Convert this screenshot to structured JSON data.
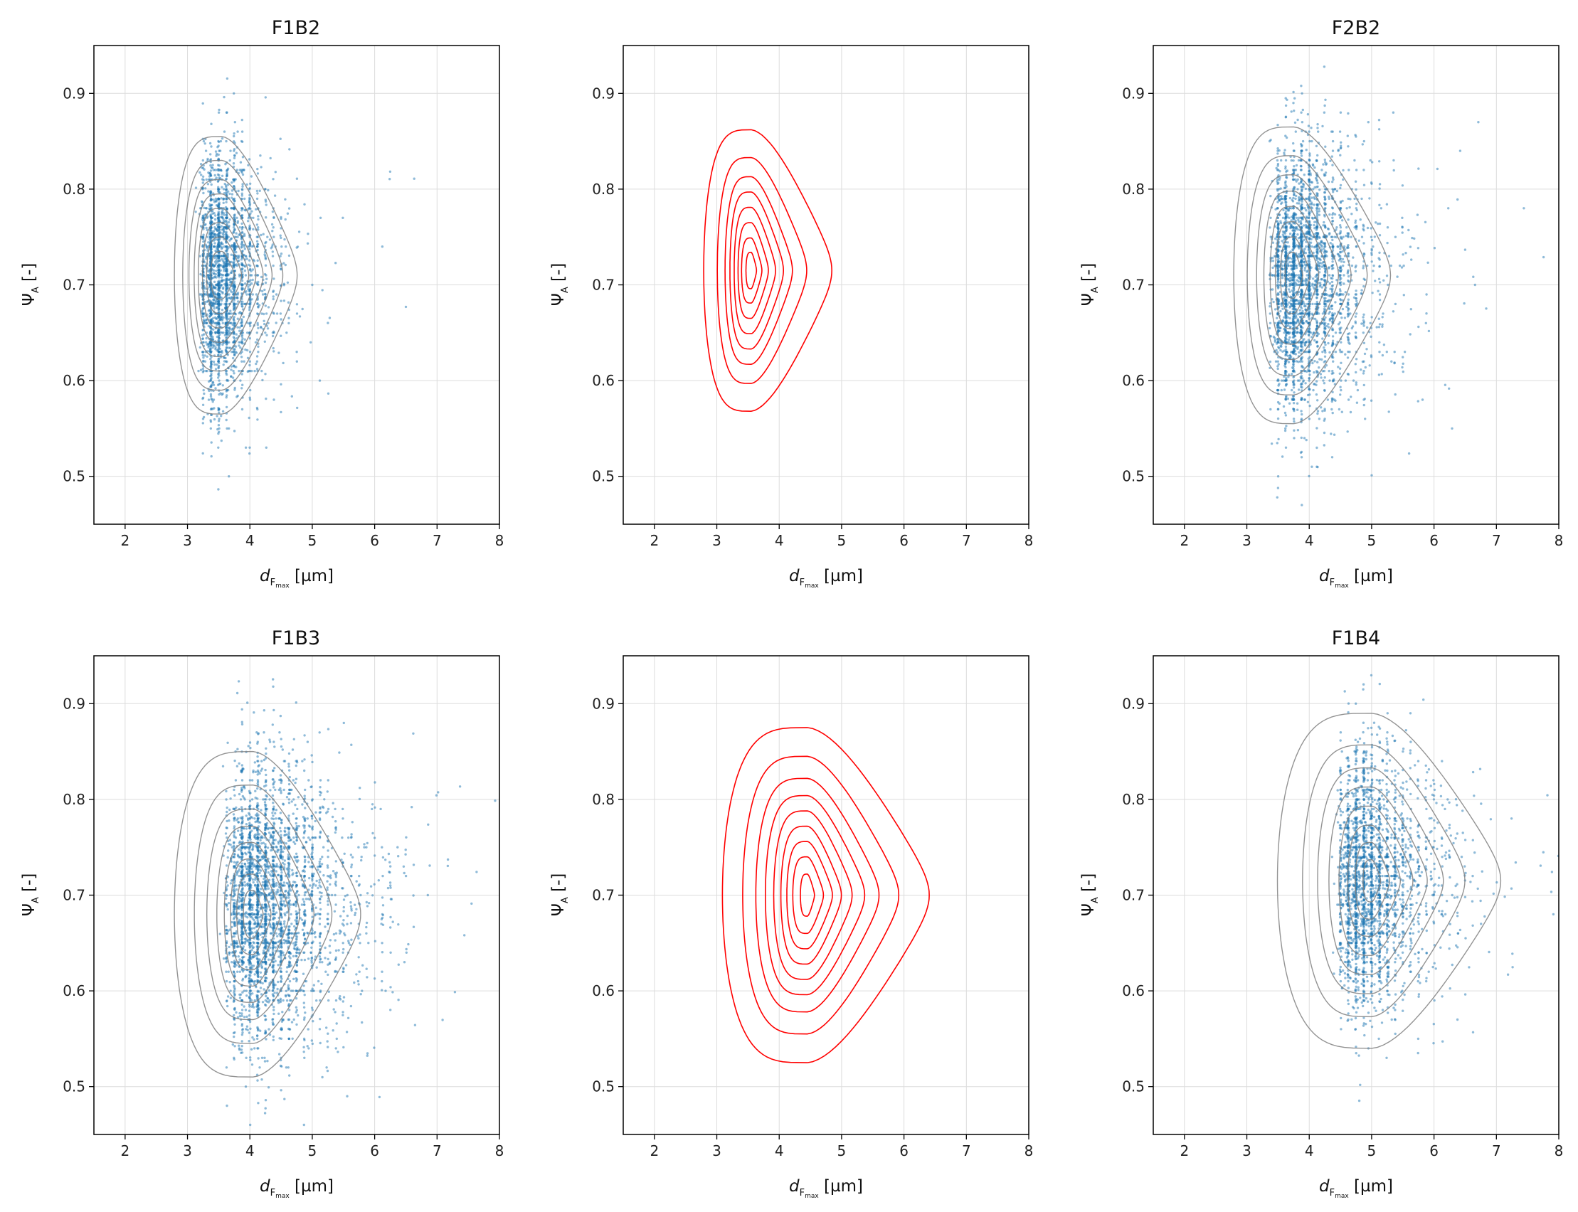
{
  "chart_data": [
    {
      "type": "scatter",
      "title": "F1B2",
      "xlabel": "d",
      "xlabel_sub": "F",
      "xlabel_subsub": "max",
      "xlabel_unit": " [µm]",
      "ylabel": "Ψ",
      "ylabel_sub": "A",
      "ylabel_unit": " [-]",
      "xlim": [
        1.5,
        8
      ],
      "ylim": [
        0.45,
        0.95
      ],
      "xticks": [
        "2",
        "3",
        "4",
        "5",
        "6",
        "7",
        "8"
      ],
      "yticks": [
        "0.5",
        "0.6",
        "0.7",
        "0.8",
        "0.9"
      ],
      "grid": true,
      "scatter": {
        "color": "#1f77b4",
        "n_points": 2600,
        "mode": 3.55,
        "min_x": 2.75,
        "x_scale": 0.55,
        "y_center": 0.71,
        "y_sd": 0.062
      },
      "contours": {
        "color": "#808080",
        "center": [
          3.55,
          0.71
        ],
        "left": 2.85,
        "rx": [
          2.1,
          1.7,
          1.4,
          1.15,
          0.95,
          0.75,
          0.55,
          0.35
        ],
        "ry": [
          0.145,
          0.12,
          0.1,
          0.085,
          0.07,
          0.055,
          0.04,
          0.025
        ]
      }
    },
    {
      "type": "contour",
      "title": "",
      "xlabel": "d",
      "xlabel_sub": "F",
      "xlabel_subsub": "max",
      "xlabel_unit": " [µm]",
      "ylabel": "Ψ",
      "ylabel_sub": "A",
      "ylabel_unit": " [-]",
      "xlim": [
        1.5,
        8
      ],
      "ylim": [
        0.45,
        0.95
      ],
      "xticks": [
        "2",
        "3",
        "4",
        "5",
        "6",
        "7",
        "8"
      ],
      "yticks": [
        "0.5",
        "0.6",
        "0.7",
        "0.8",
        "0.9"
      ],
      "grid": true,
      "contours": {
        "color": "#ff0000",
        "center": [
          3.55,
          0.715
        ],
        "left": 2.85,
        "rx": [
          2.25,
          1.55,
          1.15,
          0.9,
          0.68,
          0.48,
          0.3,
          0.15
        ],
        "ry": [
          0.147,
          0.118,
          0.098,
          0.082,
          0.066,
          0.05,
          0.034,
          0.019
        ]
      }
    },
    {
      "type": "scatter",
      "title": "F2B2",
      "xlabel": "d",
      "xlabel_sub": "F",
      "xlabel_subsub": "max",
      "xlabel_unit": " [µm]",
      "ylabel": "Ψ",
      "ylabel_sub": "A",
      "ylabel_unit": " [-]",
      "xlim": [
        1.5,
        8
      ],
      "ylim": [
        0.45,
        0.95
      ],
      "xticks": [
        "2",
        "3",
        "4",
        "5",
        "6",
        "7",
        "8"
      ],
      "yticks": [
        "0.5",
        "0.6",
        "0.7",
        "0.8",
        "0.9"
      ],
      "grid": true,
      "scatter": {
        "color": "#1f77b4",
        "n_points": 3200,
        "mode": 3.8,
        "min_x": 2.75,
        "x_scale": 0.75,
        "y_center": 0.705,
        "y_sd": 0.068
      },
      "contours": {
        "color": "#808080",
        "center": [
          3.75,
          0.71
        ],
        "left": 2.85,
        "rx": [
          2.7,
          2.05,
          1.6,
          1.25,
          0.95,
          0.7,
          0.45,
          0.25
        ],
        "ry": [
          0.155,
          0.125,
          0.105,
          0.088,
          0.072,
          0.056,
          0.04,
          0.024
        ]
      }
    },
    {
      "type": "scatter",
      "title": "F1B3",
      "xlabel": "d",
      "xlabel_sub": "F",
      "xlabel_subsub": "max",
      "xlabel_unit": " [µm]",
      "ylabel": "Ψ",
      "ylabel_sub": "A",
      "ylabel_unit": " [-]",
      "xlim": [
        1.5,
        8
      ],
      "ylim": [
        0.45,
        0.95
      ],
      "xticks": [
        "2",
        "3",
        "4",
        "5",
        "6",
        "7",
        "8"
      ],
      "yticks": [
        "0.5",
        "0.6",
        "0.7",
        "0.8",
        "0.9"
      ],
      "grid": true,
      "scatter": {
        "color": "#1f77b4",
        "n_points": 3400,
        "mode": 4.1,
        "min_x": 2.75,
        "x_scale": 0.95,
        "y_center": 0.69,
        "y_sd": 0.07
      },
      "contours": {
        "color": "#808080",
        "center": [
          4.05,
          0.68
        ],
        "left": 2.85,
        "rx": [
          3.0,
          2.2,
          1.7,
          1.3,
          1.0,
          0.75,
          0.5,
          0.28
        ],
        "ry": [
          0.17,
          0.135,
          0.11,
          0.092,
          0.075,
          0.058,
          0.042,
          0.025
        ]
      }
    },
    {
      "type": "contour",
      "title": "",
      "xlabel": "d",
      "xlabel_sub": "F",
      "xlabel_subsub": "max",
      "xlabel_unit": " [µm]",
      "ylabel": "Ψ",
      "ylabel_sub": "A",
      "ylabel_unit": " [-]",
      "xlim": [
        1.5,
        8
      ],
      "ylim": [
        0.45,
        0.95
      ],
      "xticks": [
        "2",
        "3",
        "4",
        "5",
        "6",
        "7",
        "8"
      ],
      "yticks": [
        "0.5",
        "0.6",
        "0.7",
        "0.8",
        "0.9"
      ],
      "grid": true,
      "contours": {
        "color": "#ff0000",
        "center": [
          4.45,
          0.7
        ],
        "left": 3.15,
        "rx": [
          3.4,
          2.55,
          2.0,
          1.6,
          1.25,
          0.95,
          0.7,
          0.45,
          0.2
        ],
        "ry": [
          0.175,
          0.145,
          0.122,
          0.104,
          0.088,
          0.072,
          0.056,
          0.04,
          0.022
        ]
      }
    },
    {
      "type": "scatter",
      "title": "F1B4",
      "xlabel": "d",
      "xlabel_sub": "F",
      "xlabel_subsub": "max",
      "xlabel_unit": " [µm]",
      "ylabel": "Ψ",
      "ylabel_sub": "A",
      "ylabel_unit": " [-]",
      "xlim": [
        1.5,
        8
      ],
      "ylim": [
        0.45,
        0.95
      ],
      "xticks": [
        "2",
        "3",
        "4",
        "5",
        "6",
        "7",
        "8"
      ],
      "yticks": [
        "0.5",
        "0.6",
        "0.7",
        "0.8",
        "0.9"
      ],
      "grid": true,
      "scatter": {
        "color": "#1f77b4",
        "n_points": 2600,
        "mode": 5.0,
        "min_x": 3.6,
        "x_scale": 0.75,
        "y_center": 0.715,
        "y_sd": 0.065
      },
      "contours": {
        "color": "#808080",
        "center": [
          5.0,
          0.715
        ],
        "left": 3.55,
        "rx": [
          3.6,
          2.6,
          2.0,
          1.55,
          1.15,
          0.8,
          0.5,
          0.25
        ],
        "ry": [
          0.175,
          0.142,
          0.118,
          0.098,
          0.078,
          0.058,
          0.04,
          0.022
        ]
      }
    }
  ]
}
